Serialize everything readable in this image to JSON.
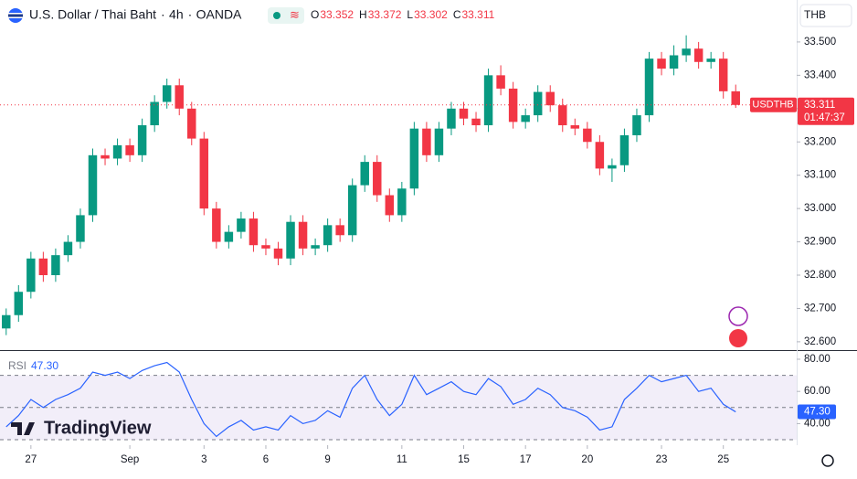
{
  "ui": {
    "currency": "THB",
    "brand": "TradingView"
  },
  "chart_data": [
    {
      "type": "candlestick",
      "title": "U.S. Dollar / Thai Baht",
      "interval": "4h",
      "source": "OANDA",
      "ohlc_labels": [
        "O",
        "H",
        "L",
        "C"
      ],
      "last": {
        "open": 33.352,
        "high": 33.372,
        "low": 33.302,
        "close": 33.311
      },
      "symbol": "USDTHB",
      "countdown": "01:47:37",
      "up_color": "#089981",
      "down_color": "#f23645",
      "open": [
        32.64,
        32.68,
        32.75,
        32.85,
        32.8,
        32.86,
        32.9,
        32.98,
        33.16,
        33.15,
        33.19,
        33.16,
        33.25,
        33.32,
        33.37,
        33.3,
        33.21,
        33.0,
        32.9,
        32.93,
        32.97,
        32.89,
        32.88,
        32.85,
        32.96,
        32.88,
        32.89,
        32.95,
        32.92,
        33.07,
        33.14,
        33.04,
        32.98,
        33.06,
        33.24,
        33.16,
        33.24,
        33.3,
        33.27,
        33.25,
        33.4,
        33.36,
        33.26,
        33.28,
        33.35,
        33.31,
        33.25,
        33.24,
        33.2,
        33.12,
        33.13,
        33.22,
        33.28,
        33.45,
        33.42,
        33.46,
        33.48,
        33.44,
        33.45,
        33.352
      ],
      "high": [
        32.7,
        32.77,
        32.87,
        32.87,
        32.88,
        32.92,
        33.0,
        33.18,
        33.18,
        33.21,
        33.21,
        33.27,
        33.34,
        33.39,
        33.39,
        33.32,
        33.23,
        33.02,
        32.95,
        32.99,
        32.99,
        32.91,
        32.9,
        32.98,
        32.98,
        32.91,
        32.97,
        32.97,
        33.09,
        33.16,
        33.16,
        33.06,
        33.08,
        33.26,
        33.26,
        33.26,
        33.32,
        33.32,
        33.29,
        33.42,
        33.43,
        33.38,
        33.3,
        33.37,
        33.37,
        33.33,
        33.27,
        33.26,
        33.22,
        33.15,
        33.24,
        33.3,
        33.47,
        33.47,
        33.49,
        33.52,
        33.5,
        33.47,
        33.47,
        33.372
      ],
      "low": [
        32.62,
        32.66,
        32.73,
        32.78,
        32.78,
        32.84,
        32.88,
        32.96,
        33.13,
        33.13,
        33.14,
        33.14,
        33.23,
        33.3,
        33.28,
        33.19,
        32.98,
        32.88,
        32.88,
        32.91,
        32.87,
        32.86,
        32.83,
        32.83,
        32.86,
        32.86,
        32.87,
        32.9,
        32.9,
        33.05,
        33.02,
        32.96,
        32.96,
        33.04,
        33.14,
        33.14,
        33.22,
        33.25,
        33.23,
        33.23,
        33.34,
        33.24,
        33.24,
        33.26,
        33.29,
        33.23,
        33.22,
        33.18,
        33.1,
        33.08,
        33.11,
        33.2,
        33.26,
        33.4,
        33.4,
        33.44,
        33.42,
        33.42,
        33.33,
        33.302
      ],
      "close": [
        32.68,
        32.75,
        32.85,
        32.8,
        32.86,
        32.9,
        32.98,
        33.16,
        33.15,
        33.19,
        33.16,
        33.25,
        33.32,
        33.37,
        33.3,
        33.21,
        33.0,
        32.9,
        32.93,
        32.97,
        32.89,
        32.88,
        32.85,
        32.96,
        32.88,
        32.89,
        32.95,
        32.92,
        33.07,
        33.14,
        33.04,
        32.98,
        33.06,
        33.24,
        33.16,
        33.24,
        33.3,
        33.27,
        33.25,
        33.4,
        33.36,
        33.26,
        33.28,
        33.35,
        33.31,
        33.25,
        33.24,
        33.2,
        33.12,
        33.13,
        33.22,
        33.28,
        33.45,
        33.42,
        33.46,
        33.48,
        33.44,
        33.45,
        33.352,
        33.311
      ],
      "ylim": [
        32.575,
        33.626
      ],
      "yticks": [
        {
          "value": 32.6,
          "label": "32.600"
        },
        {
          "value": 32.7,
          "label": "32.700"
        },
        {
          "value": 32.8,
          "label": "32.800"
        },
        {
          "value": 32.9,
          "label": "32.900"
        },
        {
          "value": 33.0,
          "label": "33.000"
        },
        {
          "value": 33.1,
          "label": "33.100"
        },
        {
          "value": 33.2,
          "label": "33.200"
        },
        {
          "value": 33.3,
          "label": "33.300"
        },
        {
          "value": 33.4,
          "label": "33.400"
        },
        {
          "value": 33.5,
          "label": "33.500"
        }
      ],
      "xticks": [
        {
          "value": 2,
          "label": "27"
        },
        {
          "value": 10,
          "label": "Sep"
        },
        {
          "value": 16,
          "label": "3"
        },
        {
          "value": 21,
          "label": "6"
        },
        {
          "value": 26,
          "label": "9"
        },
        {
          "value": 32,
          "label": "11"
        },
        {
          "value": 37,
          "label": "15"
        },
        {
          "value": 42,
          "label": "17"
        },
        {
          "value": 47,
          "label": "20"
        },
        {
          "value": 53,
          "label": "23"
        },
        {
          "value": 58,
          "label": "25"
        }
      ]
    },
    {
      "type": "line",
      "name": "RSI",
      "color": "#2962ff",
      "values": [
        38,
        45,
        55,
        50,
        55,
        58,
        62,
        72,
        70,
        72,
        68,
        73,
        76,
        78,
        72,
        55,
        40,
        32,
        38,
        42,
        36,
        38,
        36,
        45,
        40,
        42,
        48,
        44,
        62,
        70,
        55,
        45,
        52,
        70,
        58,
        62,
        66,
        60,
        58,
        68,
        63,
        52,
        55,
        62,
        58,
        50,
        48,
        44,
        36,
        38,
        55,
        62,
        70,
        66,
        68,
        70,
        60,
        62,
        52,
        47.3
      ],
      "current": {
        "value": 47.3,
        "label": "47.30"
      },
      "bands": [
        30,
        50,
        70
      ],
      "ylim": [
        26.6,
        85.1
      ],
      "yticks": [
        {
          "value": 40,
          "label": "40.00"
        },
        {
          "value": 60,
          "label": "60.00"
        },
        {
          "value": 80,
          "label": "80.00"
        }
      ]
    }
  ]
}
